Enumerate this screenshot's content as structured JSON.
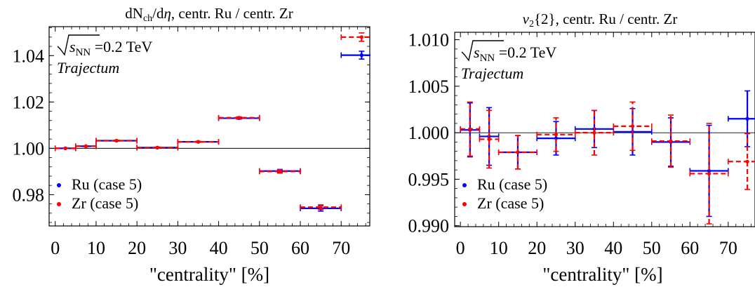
{
  "chart_data": [
    {
      "type": "scatter",
      "title": "dN_ch/dη, centr. Ru / centr. Zr",
      "title_parts": {
        "main": "dN",
        "sub": "ch",
        "rest": "/d",
        "italic": "η",
        "tail": ", centr. Ru / centr. Zr"
      },
      "xlabel": "\"centrality\" [%]",
      "ylabel": "",
      "xlim": [
        -1.5,
        77
      ],
      "ylim": [
        0.9665,
        1.0525
      ],
      "xticks": [
        0,
        10,
        20,
        30,
        40,
        50,
        60,
        70
      ],
      "yticks": [
        0.98,
        1.0,
        1.02,
        1.04
      ],
      "ytick_labels": [
        "0.98",
        "1.00",
        "1.02",
        "1.04"
      ],
      "reference_line": 1.0,
      "annotation_energy": {
        "sqrt": "s",
        "sub": "NN",
        "value": " =0.2 TeV"
      },
      "annotation_model": "Trajectum",
      "legend": [
        "Ru (case 5)",
        "Zr (case 5)"
      ],
      "series": [
        {
          "name": "Ru (case 5)",
          "color": "#0000ff",
          "dash": false,
          "x": [
            2.5,
            7.5,
            15,
            25,
            35,
            45,
            55,
            65,
            75
          ],
          "xerr": [
            2.5,
            2.5,
            5,
            5,
            5,
            5,
            5,
            5,
            5
          ],
          "y": [
            1.0,
            1.0009,
            1.0033,
            1.0003,
            1.0028,
            1.013,
            0.9902,
            0.9741,
            1.0402
          ],
          "yerr": [
            0.0001,
            0.0002,
            0.0002,
            0.0002,
            0.0002,
            0.0004,
            0.0007,
            0.0012,
            0.0017
          ]
        },
        {
          "name": "Zr (case 5)",
          "color": "#ff0000",
          "dash": true,
          "x": [
            2.5,
            7.5,
            15,
            25,
            35,
            45,
            55,
            65,
            75
          ],
          "xerr": [
            2.5,
            2.5,
            5,
            5,
            5,
            5,
            5,
            5,
            5
          ],
          "y": [
            1.0,
            1.0009,
            1.0033,
            1.0003,
            1.0028,
            1.0132,
            0.99,
            0.9746,
            1.048
          ],
          "yerr": [
            0.0001,
            0.0002,
            0.0002,
            0.0002,
            0.0002,
            0.0004,
            0.0007,
            0.001,
            0.0018
          ]
        }
      ]
    },
    {
      "type": "scatter",
      "title": "v_2{2}, centr. Ru / centr. Zr",
      "title_parts": {
        "main": "v",
        "sub": "2",
        "rest": "{2}, centr. Ru / centr. Zr"
      },
      "xlabel": "\"centrality\" [%]",
      "ylabel": "",
      "xlim": [
        -1.5,
        77
      ],
      "ylim": [
        0.9899,
        1.0108
      ],
      "xticks": [
        0,
        10,
        20,
        30,
        40,
        50,
        60,
        70
      ],
      "yticks": [
        0.99,
        0.995,
        1.0,
        1.005,
        1.01
      ],
      "ytick_labels": [
        "0.990",
        "0.995",
        "1.000",
        "1.005",
        "1.010"
      ],
      "reference_line": 1.0,
      "annotation_energy": {
        "sqrt": "s",
        "sub": "NN",
        "value": " =0.2 TeV"
      },
      "annotation_model": "Trajectum",
      "legend": [
        "Ru (case 5)",
        "Zr (case 5)"
      ],
      "series": [
        {
          "name": "Ru (case 5)",
          "color": "#0000ff",
          "dash": false,
          "x": [
            2.5,
            7.5,
            15,
            25,
            35,
            45,
            55,
            65,
            75
          ],
          "xerr": [
            2.5,
            2.5,
            5,
            5,
            5,
            5,
            5,
            5,
            5
          ],
          "y": [
            1.0003,
            0.9996,
            0.9979,
            0.9994,
            1.0004,
            1.0001,
            0.999,
            0.9959,
            1.0015
          ],
          "yerr": [
            0.0029,
            0.0031,
            0.0018,
            0.0018,
            0.002,
            0.0025,
            0.0026,
            0.0049,
            0.003
          ]
        },
        {
          "name": "Zr (case 5)",
          "color": "#ff0000",
          "dash": true,
          "x": [
            2.5,
            7.5,
            15,
            25,
            35,
            45,
            55,
            65,
            75
          ],
          "xerr": [
            2.5,
            2.5,
            5,
            5,
            5,
            5,
            5,
            5,
            5
          ],
          "y": [
            1.0004,
            0.9993,
            0.9979,
            0.9998,
            1.0,
            1.0007,
            0.9991,
            0.9956,
            0.9969
          ],
          "yerr": [
            0.0029,
            0.0031,
            0.0018,
            0.0018,
            0.0024,
            0.0026,
            0.0028,
            0.0054,
            0.003
          ]
        }
      ]
    }
  ]
}
